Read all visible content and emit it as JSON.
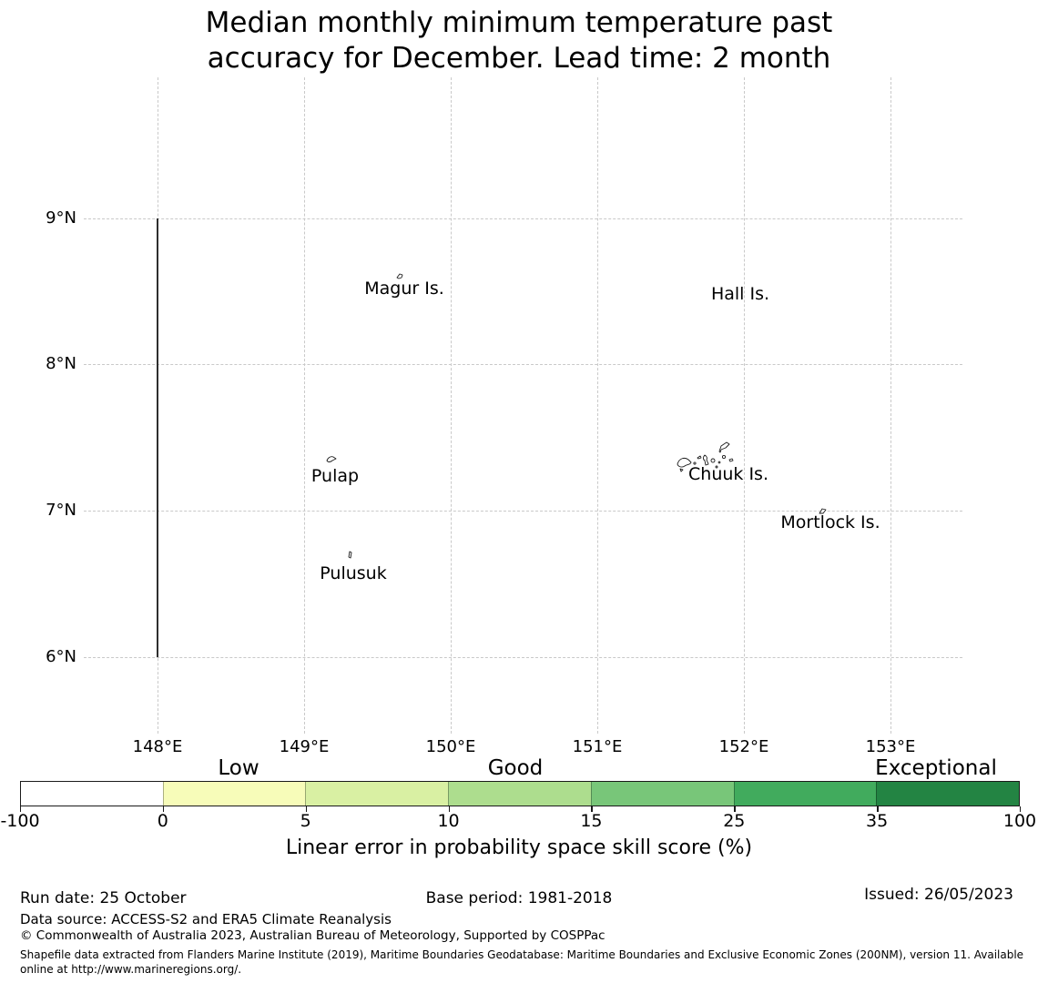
{
  "title": {
    "line1": "Median monthly minimum temperature past",
    "line2": "accuracy for December. Lead time: 2 month"
  },
  "map": {
    "lat_ticks": [
      "9°N",
      "8°N",
      "7°N",
      "6°N"
    ],
    "lon_ticks": [
      "148°E",
      "149°E",
      "150°E",
      "151°E",
      "152°E",
      "153°E"
    ],
    "islands": [
      {
        "label": "Magur Is."
      },
      {
        "label": "Hall Is."
      },
      {
        "label": "Pulap"
      },
      {
        "label": "Chuuk Is."
      },
      {
        "label": "Mortlock Is."
      },
      {
        "label": "Pulusuk"
      }
    ],
    "gridline_color": "#c9c9c9",
    "eez_line_color": "#2e2e2e"
  },
  "colorbar": {
    "region_labels": [
      "Low",
      "Good",
      "Exceptional"
    ],
    "tick_labels": [
      "-100",
      "0",
      "5",
      "10",
      "15",
      "25",
      "35",
      "100"
    ],
    "segment_colors": [
      "#ffffff",
      "#f7fcb9",
      "#d9f0a3",
      "#addd8e",
      "#78c679",
      "#41ab5d",
      "#238443"
    ],
    "label": "Linear error in probability space skill score (%)"
  },
  "footer": {
    "run_date": "Run date: 25 October",
    "base_period": "Base period: 1981-2018",
    "issued": "Issued: 26/05/2023",
    "data_source": "Data source: ACCESS-S2 and ERA5 Climate Reanalysis",
    "copyright": "© Commonwealth of Australia 2023, Australian Bureau of Meteorology, Supported by COSPPac",
    "shapefile_line1": "Shapefile data extracted from Flanders Marine Institute (2019), Maritime Boundaries Geodatabase: Maritime Boundaries and Exclusive Economic Zones (200NM), version 11. Available",
    "shapefile_line2": "online at http://www.marineregions.org/."
  },
  "chart_data": {
    "type": "map",
    "title": "Median monthly minimum temperature past accuracy for December. Lead time: 2 month",
    "lon_ticks": [
      148,
      149,
      150,
      151,
      152,
      153
    ],
    "lat_ticks": [
      9,
      8,
      7,
      6
    ],
    "lon_range": [
      147.5,
      153.5
    ],
    "lat_range": [
      5.5,
      10.0
    ],
    "grid": true,
    "eez_boundary_line": {
      "lon": 148,
      "lat_from": 6,
      "lat_to": 9
    },
    "islands": [
      {
        "name": "Magur Is.",
        "lon": 149.65,
        "lat": 8.61
      },
      {
        "name": "Hall Is.",
        "lon": 151.97,
        "lat": 8.48
      },
      {
        "name": "Pulap",
        "lon": 149.18,
        "lat": 7.37
      },
      {
        "name": "Chuuk Is.",
        "lon": 151.74,
        "lat": 7.39
      },
      {
        "name": "Mortlock Is.",
        "lon": 152.55,
        "lat": 7.0
      },
      {
        "name": "Pulusuk",
        "lon": 149.32,
        "lat": 6.7
      }
    ],
    "colorbar": {
      "label": "Linear error in probability space skill score (%)",
      "boundaries": [
        -100,
        0,
        5,
        10,
        15,
        25,
        35,
        100
      ],
      "colors": [
        "#ffffff",
        "#f7fcb9",
        "#d9f0a3",
        "#addd8e",
        "#78c679",
        "#41ab5d",
        "#238443"
      ],
      "region_labels": [
        {
          "text": "Low",
          "range": [
            0,
            5
          ]
        },
        {
          "text": "Good",
          "range": [
            10,
            15
          ]
        },
        {
          "text": "Exceptional",
          "range": [
            35,
            100
          ]
        }
      ]
    }
  }
}
